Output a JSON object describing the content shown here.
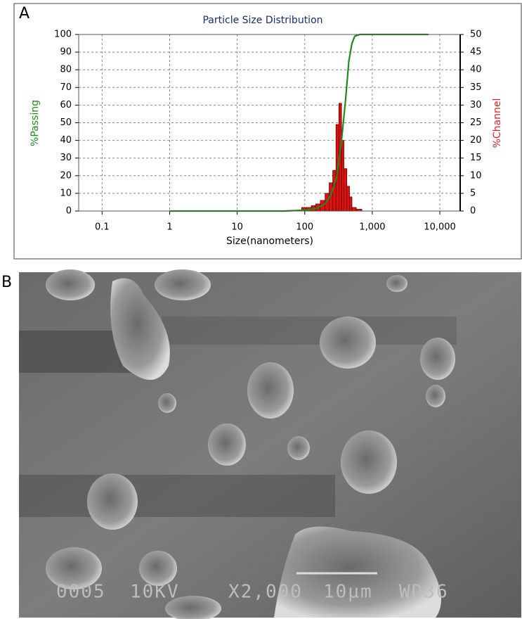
{
  "panel_a": {
    "label": "A"
  },
  "chart_data": {
    "type": "combo",
    "title": "Particle Size Distribution",
    "xlabel": "Size(nanometers)",
    "ylabel": "%Passing",
    "y2label": "%Channel",
    "xscale": "log",
    "xlim": [
      0.045,
      20000
    ],
    "xticks": [
      0.1,
      1,
      10,
      100,
      {
        "value": 1000,
        "label": "1,000"
      },
      {
        "value": 10000,
        "label": "10,000"
      }
    ],
    "ylim": [
      0,
      100
    ],
    "yticks": [
      0,
      10,
      20,
      30,
      40,
      50,
      60,
      70,
      80,
      90,
      100
    ],
    "y2lim": [
      0,
      50
    ],
    "y2ticks": [
      0,
      5,
      10,
      15,
      20,
      25,
      30,
      35,
      40,
      45,
      50
    ],
    "grid": true,
    "ylabel_color": "#1a8a1a",
    "y2label_color": "#e02020",
    "series": [
      {
        "type": "line",
        "color": "#1f8a1f",
        "x": [
          1,
          10,
          50,
          100,
          150,
          200,
          250,
          300,
          350,
          400,
          450,
          500,
          550,
          650,
          6800
        ],
        "values": [
          0,
          0,
          0,
          0.5,
          1.5,
          4,
          10,
          20,
          40,
          62,
          85,
          95,
          99,
          100,
          100
        ]
      },
      {
        "type": "histogram",
        "axis": "y2",
        "color": "#e01010",
        "edge": "#600000",
        "bins": [
          90,
          105,
          125,
          145,
          170,
          200,
          230,
          260,
          290,
          320,
          350,
          380,
          420,
          460,
          500,
          580,
          700
        ],
        "values": [
          1,
          1,
          1.5,
          2,
          3,
          5,
          8,
          11.5,
          24.5,
          30.5,
          20,
          12,
          7,
          4,
          1,
          0.5
        ]
      }
    ]
  },
  "panel_b": {
    "label": "B",
    "info": [
      "0005",
      "10KV",
      "X2,000",
      "10μm",
      "WD36"
    ]
  }
}
